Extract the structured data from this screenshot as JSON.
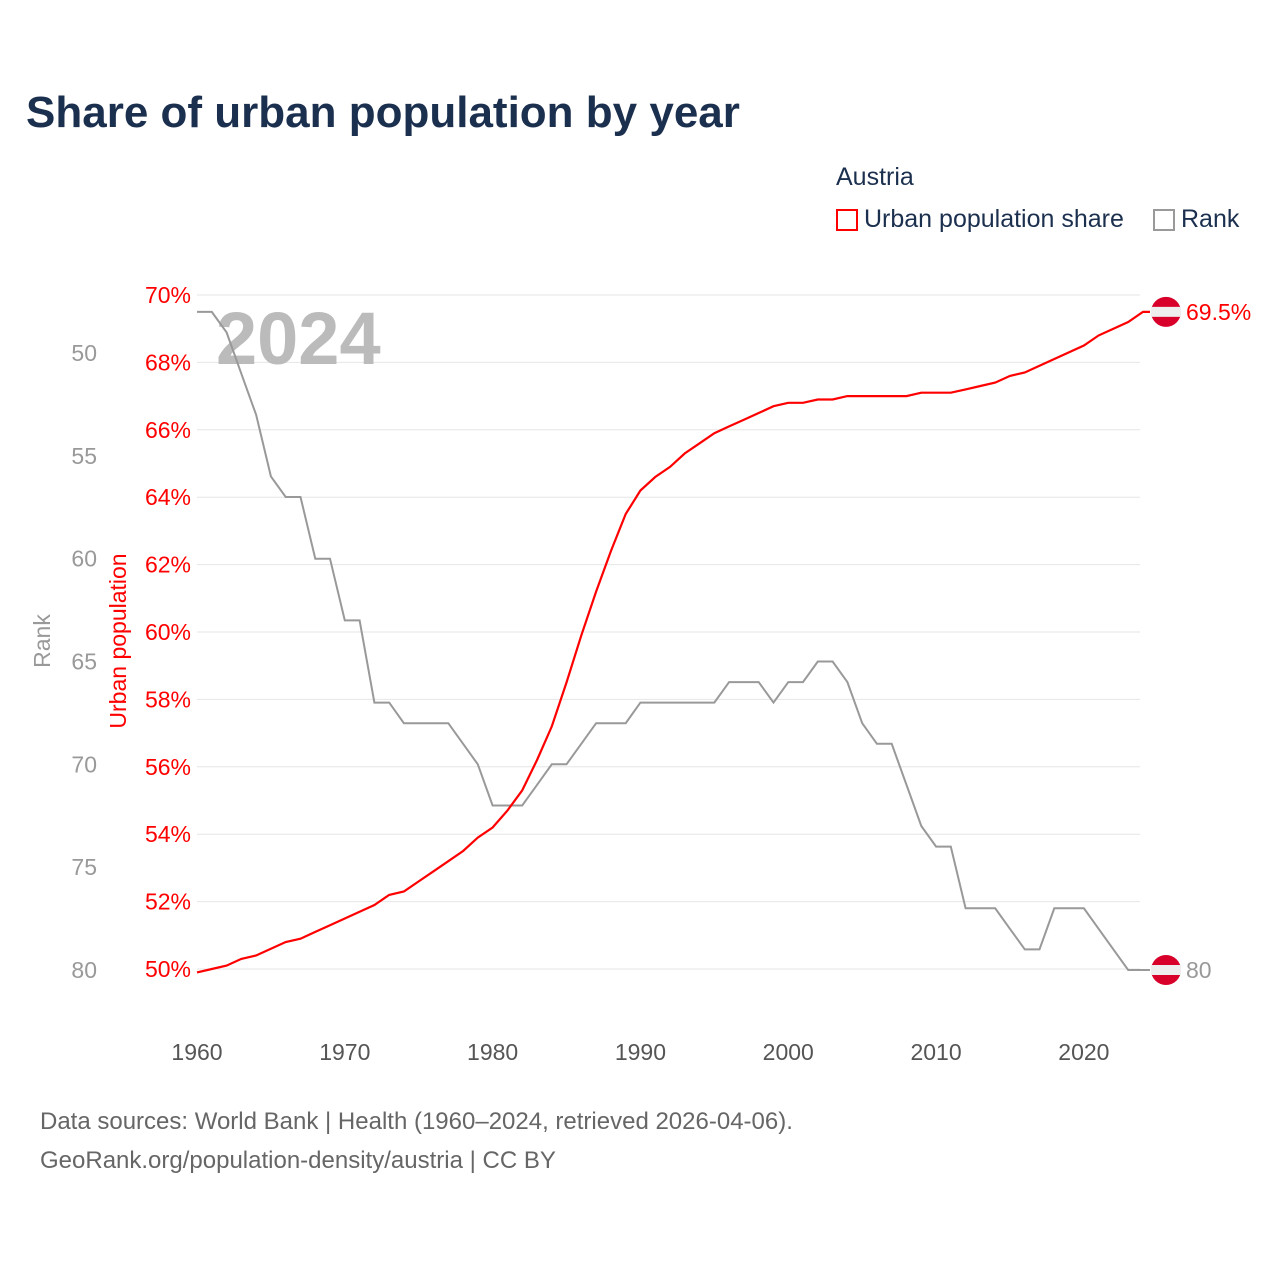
{
  "title": "Share of urban population by year",
  "legend": {
    "title": "Austria",
    "items": [
      {
        "label": "Urban population share",
        "color": "#ff0000"
      },
      {
        "label": "Rank",
        "color": "#999999"
      }
    ]
  },
  "footer": {
    "line1": "Data sources: World Bank | Health (1960–2024, retrieved 2026-04-06).",
    "line2": "GeoRank.org/population-density/austria | CC BY"
  },
  "chart_data": {
    "type": "line",
    "title": "Share of urban population by year",
    "watermark_year": "2024",
    "x": [
      1960,
      1961,
      1962,
      1963,
      1964,
      1965,
      1966,
      1967,
      1968,
      1969,
      1970,
      1971,
      1972,
      1973,
      1974,
      1975,
      1976,
      1977,
      1978,
      1979,
      1980,
      1981,
      1982,
      1983,
      1984,
      1985,
      1986,
      1987,
      1988,
      1989,
      1990,
      1991,
      1992,
      1993,
      1994,
      1995,
      1996,
      1997,
      1998,
      1999,
      2000,
      2001,
      2002,
      2003,
      2004,
      2005,
      2006,
      2007,
      2008,
      2009,
      2010,
      2011,
      2012,
      2013,
      2014,
      2015,
      2016,
      2017,
      2018,
      2019,
      2020,
      2021,
      2022,
      2023,
      2024
    ],
    "series": [
      {
        "name": "Urban population share",
        "axis": "left",
        "color": "#ff0000",
        "values": [
          49.9,
          50.0,
          50.1,
          50.3,
          50.4,
          50.6,
          50.8,
          50.9,
          51.1,
          51.3,
          51.5,
          51.7,
          51.9,
          52.2,
          52.3,
          52.6,
          52.9,
          53.2,
          53.5,
          53.9,
          54.2,
          54.7,
          55.3,
          56.2,
          57.2,
          58.5,
          59.9,
          61.2,
          62.4,
          63.5,
          64.2,
          64.6,
          64.9,
          65.3,
          65.6,
          65.9,
          66.1,
          66.3,
          66.5,
          66.7,
          66.8,
          66.8,
          66.9,
          66.9,
          67.0,
          67.0,
          67.0,
          67.0,
          67.0,
          67.1,
          67.1,
          67.1,
          67.2,
          67.3,
          67.4,
          67.6,
          67.7,
          67.9,
          68.1,
          68.3,
          68.5,
          68.8,
          69.0,
          69.2,
          69.5
        ],
        "end_label": "69.5%"
      },
      {
        "name": "Rank",
        "axis": "right-inverted",
        "color": "#999999",
        "values": [
          48,
          48,
          49,
          51,
          53,
          56,
          57,
          57,
          60,
          60,
          63,
          63,
          67,
          67,
          68,
          68,
          68,
          68,
          69,
          70,
          72,
          72,
          72,
          71,
          70,
          70,
          69,
          68,
          68,
          68,
          67,
          67,
          67,
          67,
          67,
          67,
          66,
          66,
          66,
          67,
          66,
          66,
          65,
          65,
          66,
          68,
          69,
          69,
          71,
          73,
          74,
          74,
          77,
          77,
          77,
          78,
          79,
          79,
          77,
          77,
          77,
          78,
          79,
          80,
          80
        ],
        "end_label": "80"
      }
    ],
    "xticks": [
      "1960",
      "1970",
      "1980",
      "1990",
      "2000",
      "2010",
      "2020"
    ],
    "yticks_left": [
      "50%",
      "52%",
      "54%",
      "56%",
      "58%",
      "60%",
      "62%",
      "64%",
      "66%",
      "68%",
      "70%"
    ],
    "yticks_rank": [
      "50",
      "55",
      "60",
      "65",
      "70",
      "75",
      "80"
    ],
    "ylabel_left": "Urban population",
    "ylabel_rank": "Rank",
    "xlim": [
      1960,
      2024
    ],
    "ylim_left": [
      50,
      70
    ],
    "ylim_rank": [
      50,
      80
    ],
    "grid": true,
    "legend_position": "top-right"
  }
}
